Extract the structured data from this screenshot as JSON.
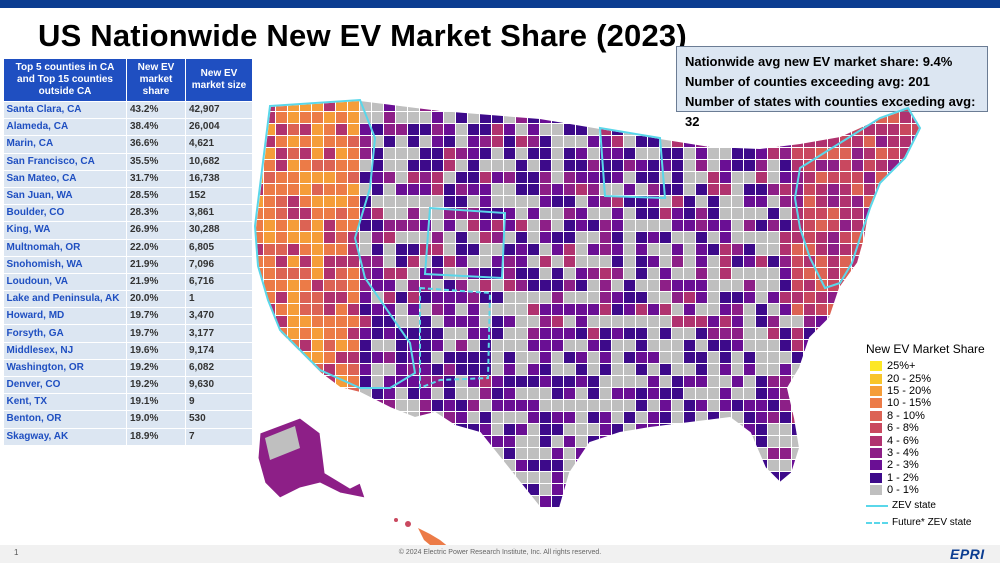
{
  "title": "US Nationwide New EV Market Share (2023)",
  "stats": [
    "Nationwide avg new EV market share: 9.4%",
    "Number of counties exceeding avg: 201",
    "Number of states with counties exceeding avg: 32"
  ],
  "table": {
    "headers": [
      "Top 5 counties in CA and Top 15 counties outside CA",
      "New EV market share",
      "New EV market size"
    ],
    "rows": [
      [
        "Santa Clara, CA",
        "43.2%",
        "42,907"
      ],
      [
        "Alameda, CA",
        "38.4%",
        "26,004"
      ],
      [
        "Marin, CA",
        "36.6%",
        "4,621"
      ],
      [
        "San Francisco, CA",
        "35.5%",
        "10,682"
      ],
      [
        "San Mateo, CA",
        "31.7%",
        "16,738"
      ],
      [
        "San Juan, WA",
        "28.5%",
        "152"
      ],
      [
        "Boulder, CO",
        "28.3%",
        "3,861"
      ],
      [
        "King, WA",
        "26.9%",
        "30,288"
      ],
      [
        "Multnomah, OR",
        "22.0%",
        "6,805"
      ],
      [
        "Snohomish, WA",
        "21.9%",
        "7,096"
      ],
      [
        "Loudoun, VA",
        "21.9%",
        "6,716"
      ],
      [
        "Lake and Peninsula, AK",
        "20.0%",
        "1"
      ],
      [
        "Howard, MD",
        "19.7%",
        "3,470"
      ],
      [
        "Forsyth, GA",
        "19.7%",
        "3,177"
      ],
      [
        "Middlesex, NJ",
        "19.6%",
        "9,174"
      ],
      [
        "Washington, OR",
        "19.2%",
        "6,082"
      ],
      [
        "Denver, CO",
        "19.2%",
        "9,630"
      ],
      [
        "Kent, TX",
        "19.1%",
        "9"
      ],
      [
        "Benton, OR",
        "19.0%",
        "530"
      ],
      [
        "Skagway, AK",
        "18.9%",
        "7"
      ]
    ]
  },
  "legend": {
    "title": "New EV Market Share",
    "items": [
      {
        "label": "25%+",
        "color": "#fde725"
      },
      {
        "label": "20 - 25%",
        "color": "#f8c52a"
      },
      {
        "label": "15 - 20%",
        "color": "#f59d39"
      },
      {
        "label": "10 - 15%",
        "color": "#ec7b47"
      },
      {
        "label": "8 - 10%",
        "color": "#dc6354"
      },
      {
        "label": "6 - 8%",
        "color": "#c9485f"
      },
      {
        "label": "4 - 6%",
        "color": "#b0326f"
      },
      {
        "label": "3 - 4%",
        "color": "#8d1f87"
      },
      {
        "label": "2 - 3%",
        "color": "#6a0f94"
      },
      {
        "label": "1 - 2%",
        "color": "#3d0a8a"
      },
      {
        "label": "0 - 1%",
        "color": "#bfbfbf"
      }
    ],
    "zev_label": "ZEV state",
    "future_label": "Future* ZEV state",
    "zev_color": "#5ad7ea"
  },
  "footer": {
    "page": "1",
    "copyright": "© 2024 Electric Power Research Institute, Inc. All rights reserved.",
    "logo": "EPRI"
  }
}
